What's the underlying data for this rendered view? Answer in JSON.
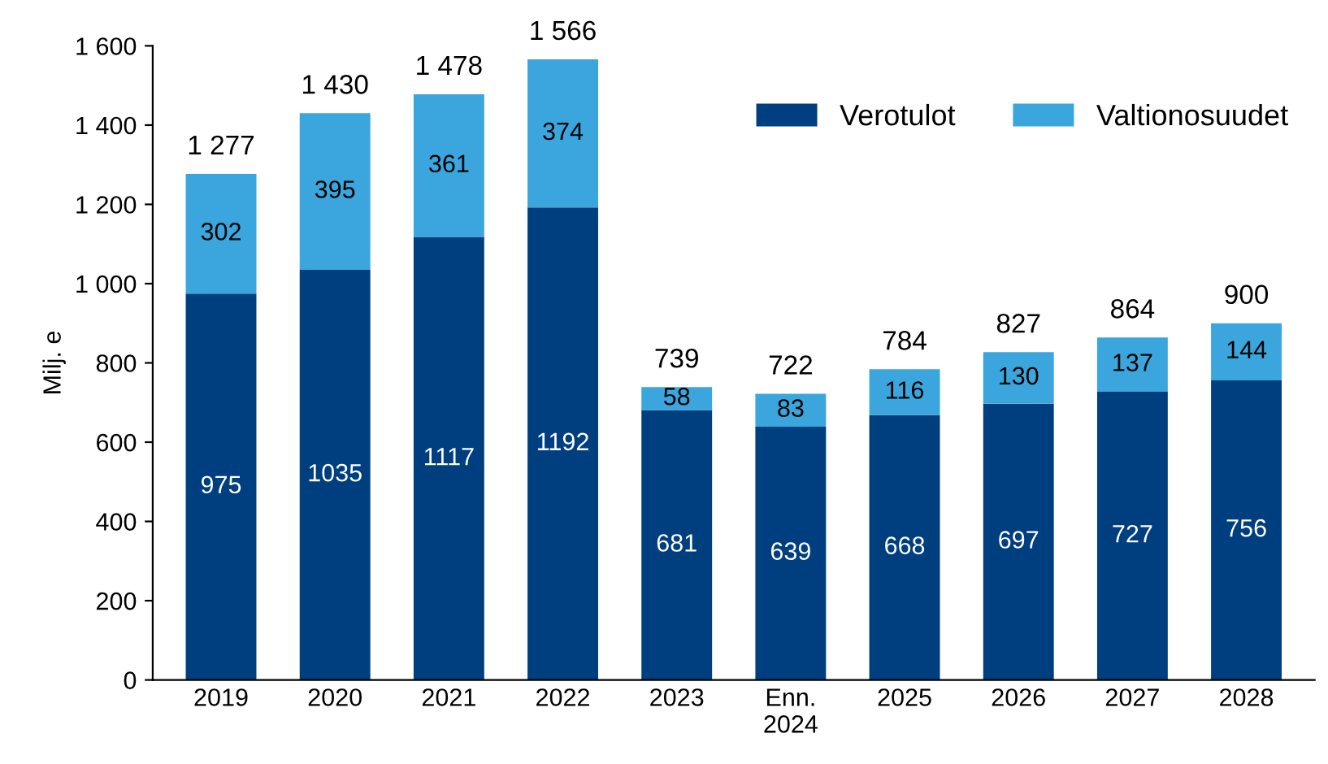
{
  "chart_data": {
    "type": "bar",
    "stacked": true,
    "ylabel": "Milj. e",
    "categories": [
      "2019",
      "2020",
      "2021",
      "2022",
      "2023",
      "Enn.\n2024",
      "2025",
      "2026",
      "2027",
      "2028"
    ],
    "series": [
      {
        "name": "Verotulot",
        "color": "#003f7f",
        "values": [
          975,
          1035,
          1117,
          1192,
          681,
          639,
          668,
          697,
          727,
          756
        ]
      },
      {
        "name": "Valtionosuudet",
        "color": "#3aa6dd",
        "values": [
          302,
          395,
          361,
          374,
          58,
          83,
          116,
          130,
          137,
          144
        ]
      }
    ],
    "totals": [
      "1 277",
      "1 430",
      "1 478",
      "1 566",
      "739",
      "722",
      "784",
      "827",
      "864",
      "900"
    ],
    "data_labels": true,
    "ylim": [
      0,
      1600
    ],
    "yticks": [
      0,
      200,
      400,
      600,
      800,
      {
        "value": 1000,
        "label": "1 000"
      },
      {
        "value": 1200,
        "label": "1 200"
      },
      {
        "value": 1400,
        "label": "1 400"
      },
      {
        "value": 1600,
        "label": "1 600"
      }
    ],
    "grid": false,
    "legend": "top right"
  }
}
